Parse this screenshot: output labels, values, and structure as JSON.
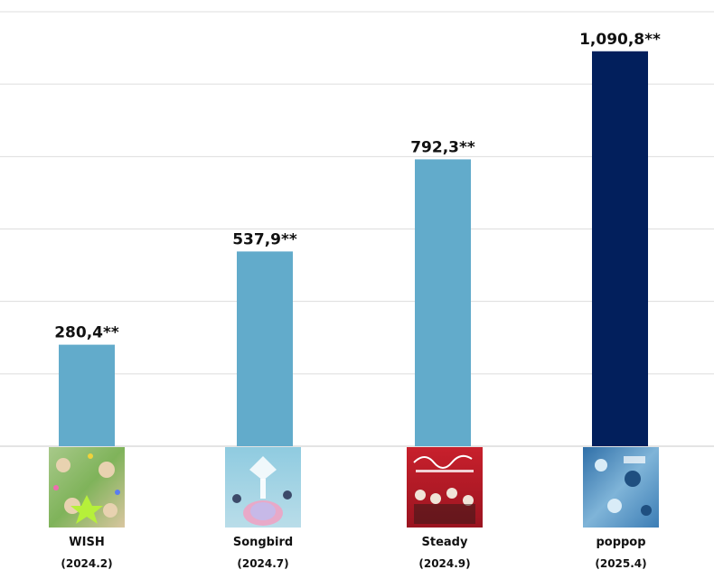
{
  "chart_data": {
    "type": "bar",
    "categories": [
      "WISH",
      "Songbird",
      "Steady",
      "poppop"
    ],
    "dates": [
      "(2024.2)",
      "(2024.7)",
      "(2024.9)",
      "(2025.4)"
    ],
    "values": [
      280.4,
      537.9,
      792.3,
      1090.8
    ],
    "value_labels": [
      "280,4**",
      "537,9**",
      "792,3**",
      "1,090,8**"
    ],
    "ylim": [
      0,
      1200
    ],
    "grid": true,
    "colors": {
      "default": "#62abcb",
      "highlight": "#021f5c",
      "grid": "#dddddd",
      "baseline": "#c8c8c8"
    },
    "highlight_index": 3,
    "album_art_icons": [
      "wish-album-art-icon",
      "songbird-album-art-icon",
      "steady-album-art-icon",
      "poppop-album-art-icon"
    ]
  }
}
